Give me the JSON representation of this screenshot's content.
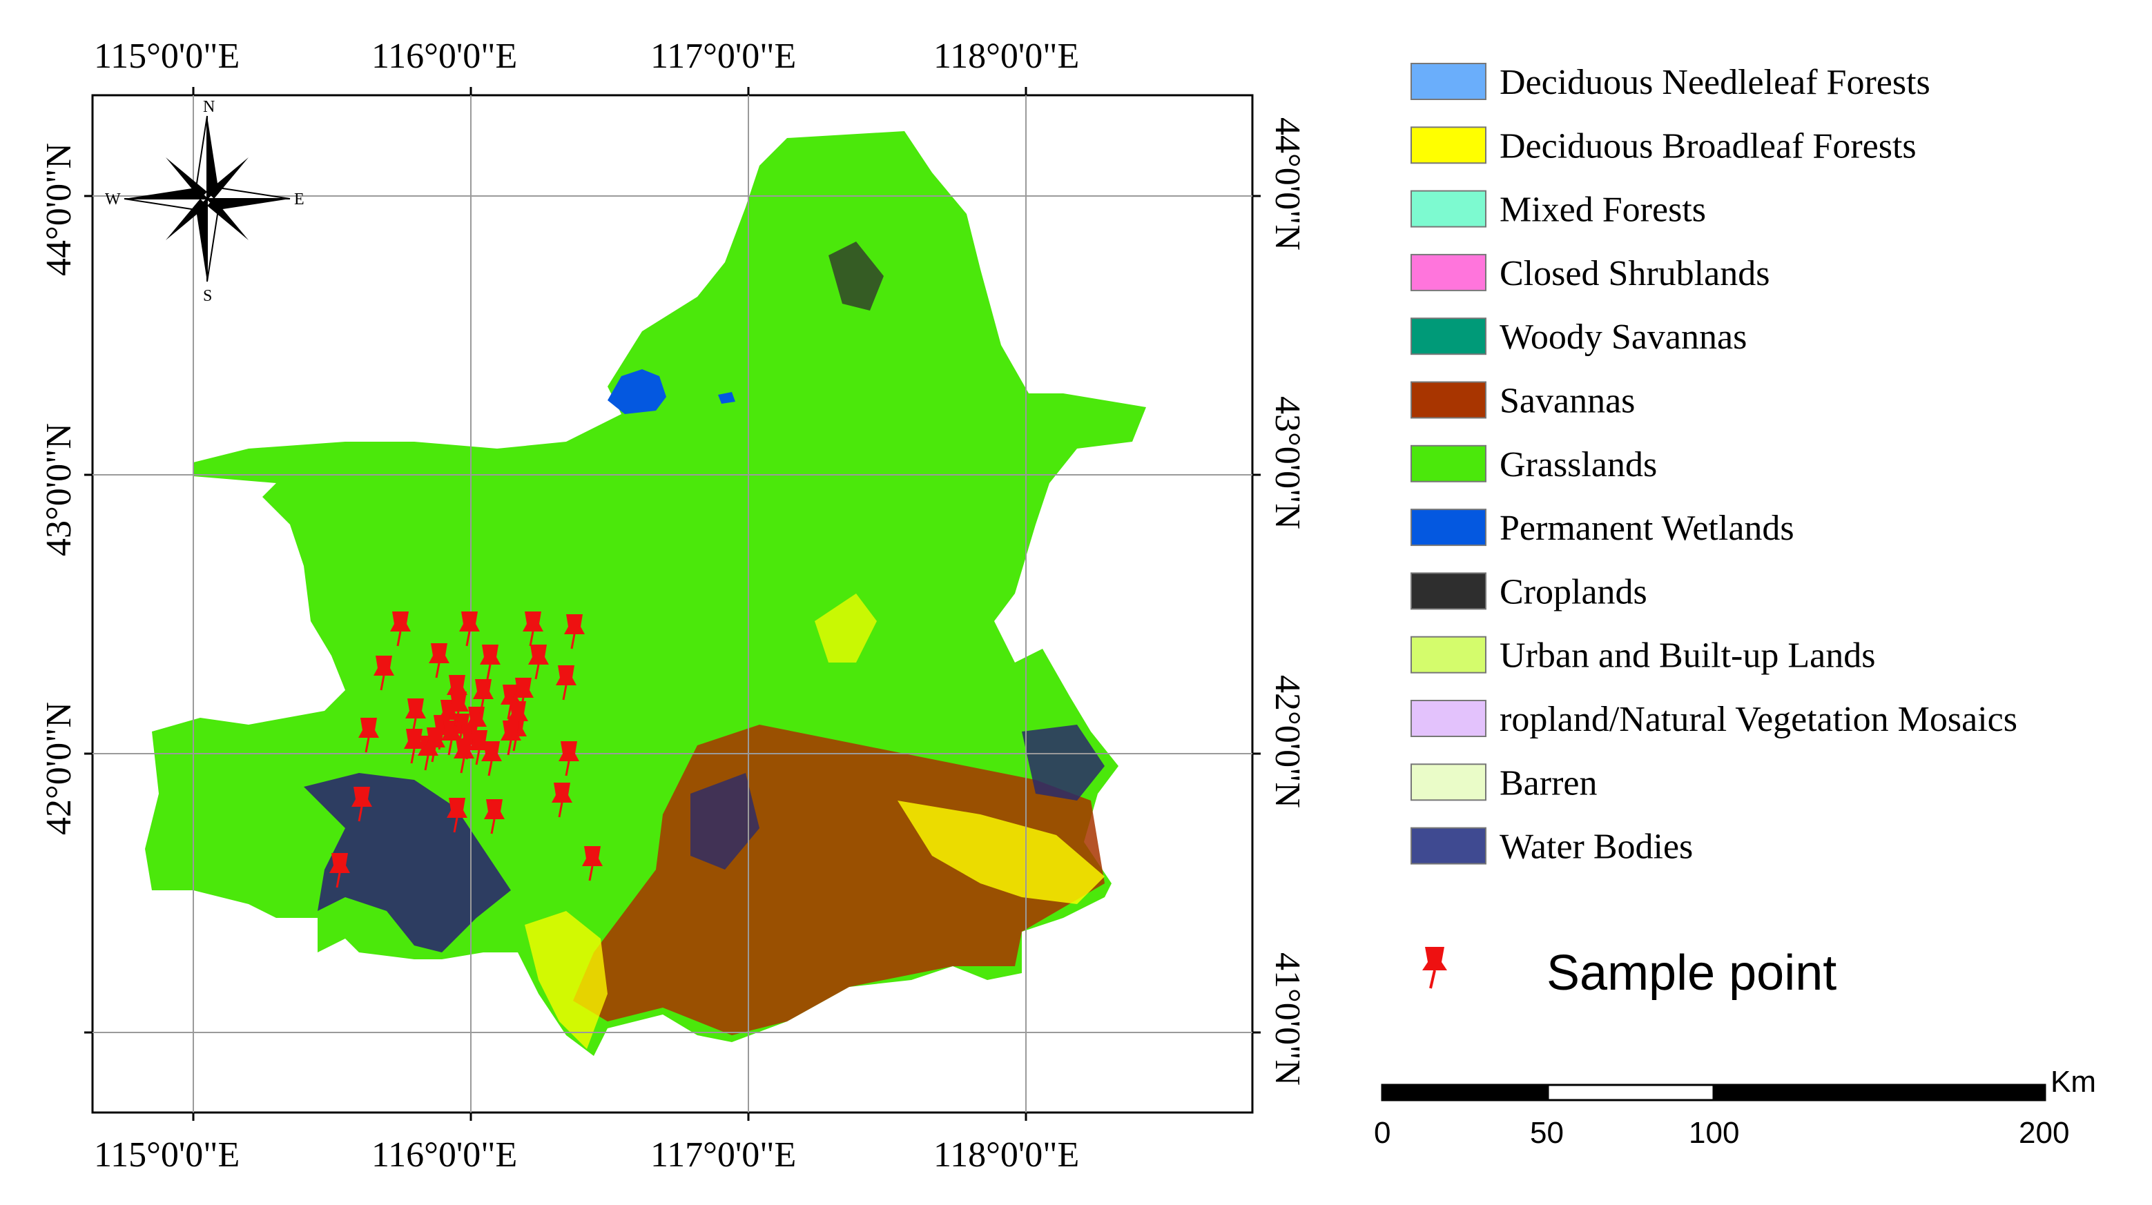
{
  "map": {
    "longitude_labels": [
      "115°0'0\"E",
      "116°0'0\"E",
      "117°0'0\"E",
      "118°0'0\"E"
    ],
    "latitude_labels": [
      "44°0'0\"N",
      "43°0'0\"N",
      "42°0'0\"N",
      "41°0'0\"N"
    ],
    "sample_point_count": 38
  },
  "compass": {
    "n": "N",
    "s": "S",
    "e": "E",
    "w": "W"
  },
  "legend": {
    "items": [
      {
        "label": "Deciduous Needleleaf Forests",
        "color": "#6aaefb"
      },
      {
        "label": "Deciduous Broadleaf Forests",
        "color": "#ffff00"
      },
      {
        "label": "Mixed Forests",
        "color": "#7dfad0"
      },
      {
        "label": "Closed Shrublands",
        "color": "#ff75dc"
      },
      {
        "label": "Woody Savannas",
        "color": "#009a78"
      },
      {
        "label": "Savannas",
        "color": "#a83500"
      },
      {
        "label": "Grasslands",
        "color": "#4be80b"
      },
      {
        "label": "Permanent Wetlands",
        "color": "#0458e0"
      },
      {
        "label": "Croplands",
        "color": "#2e2e2e"
      },
      {
        "label": "Urban and Built-up Lands",
        "color": "#d4fc6c"
      },
      {
        "label": "ropland/Natural Vegetation Mosaics",
        "color": "#e3c2fc"
      },
      {
        "label": "Barren",
        "color": "#eafcc8"
      },
      {
        "label": "Water Bodies",
        "color": "#3f4a91"
      }
    ],
    "sample_label": "Sample point",
    "sample_color": "#ee1111"
  },
  "scale_bar": {
    "unit": "Km",
    "ticks": [
      "0",
      "50",
      "100",
      "200"
    ]
  }
}
